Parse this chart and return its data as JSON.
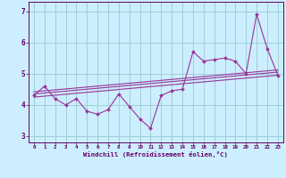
{
  "xlabel": "Windchill (Refroidissement éolien,°C)",
  "x_values": [
    0,
    1,
    2,
    3,
    4,
    5,
    6,
    7,
    8,
    9,
    10,
    11,
    12,
    13,
    14,
    15,
    16,
    17,
    18,
    19,
    20,
    21,
    22,
    23
  ],
  "y_data": [
    4.3,
    4.6,
    4.2,
    4.0,
    4.2,
    3.8,
    3.7,
    3.85,
    4.35,
    3.95,
    3.55,
    3.25,
    4.3,
    4.45,
    4.5,
    5.7,
    5.4,
    5.45,
    5.5,
    5.4,
    5.0,
    6.9,
    5.8,
    4.95
  ],
  "trend1_start": 4.25,
  "trend1_end": 4.95,
  "trend2_start": 4.35,
  "trend2_end": 5.05,
  "trend3_start": 4.42,
  "trend3_end": 5.12,
  "line_color": "#993399",
  "bg_color": "#cceeff",
  "grid_color": "#99cccc",
  "axis_color": "#660066",
  "ylim": [
    2.8,
    7.3
  ],
  "xlim": [
    -0.5,
    23.5
  ],
  "yticks": [
    3,
    4,
    5,
    6,
    7
  ],
  "xticks": [
    0,
    1,
    2,
    3,
    4,
    5,
    6,
    7,
    8,
    9,
    10,
    11,
    12,
    13,
    14,
    15,
    16,
    17,
    18,
    19,
    20,
    21,
    22,
    23
  ]
}
